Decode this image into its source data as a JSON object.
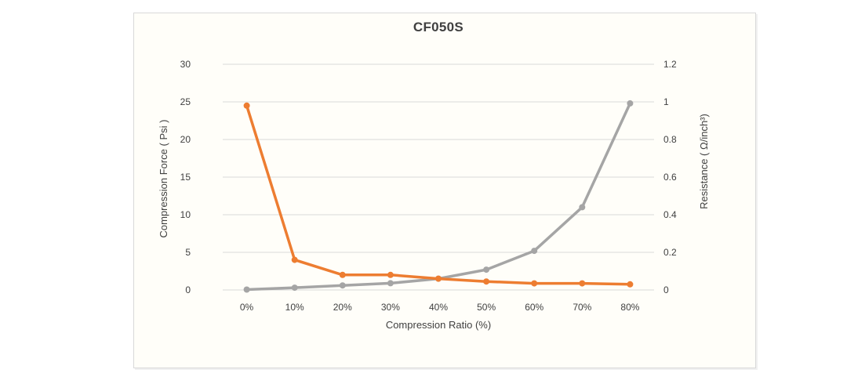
{
  "chart": {
    "title": "CF050S",
    "x_axis": {
      "title": "Compression Ratio   (%)",
      "categories": [
        "0%",
        "10%",
        "20%",
        "30%",
        "40%",
        "50%",
        "60%",
        "70%",
        "80%"
      ]
    },
    "left_axis": {
      "title": "Compression Force   ( Psi )",
      "ticks": [
        0,
        5,
        10,
        15,
        20,
        25,
        30
      ]
    },
    "right_axis": {
      "title": "Resistance ( Ω/inch³)",
      "ticks": [
        "0",
        "0.2",
        "0.4",
        "0.6",
        "0.8",
        "1",
        "1.2"
      ]
    },
    "colors": {
      "force_series": "#A5A5A5",
      "resistance_series": "#ED7D31",
      "gridline": "#D9D9D9",
      "frame_border": "#D9D9D9",
      "text": "#404040"
    }
  },
  "chart_data": {
    "type": "line",
    "title": "CF050S",
    "categories": [
      "0%",
      "10%",
      "20%",
      "30%",
      "40%",
      "50%",
      "60%",
      "70%",
      "80%"
    ],
    "series": [
      {
        "name": "Compression Force (Psi)",
        "axis": "left",
        "color": "#A5A5A5",
        "values": [
          0.05,
          0.3,
          0.6,
          0.9,
          1.5,
          2.7,
          5.2,
          11,
          24.8
        ]
      },
      {
        "name": "Resistance (Ω/inch³)",
        "axis": "right",
        "color": "#ED7D31",
        "values": [
          0.98,
          0.16,
          0.08,
          0.08,
          0.06,
          0.045,
          0.035,
          0.035,
          0.03
        ]
      }
    ],
    "xlabel": "Compression Ratio (%)",
    "ylabel_left": "Compression Force (Psi)",
    "ylabel_right": "Resistance (Ω/inch³)",
    "left_ylim": [
      0,
      30
    ],
    "right_ylim": [
      0,
      1.2
    ],
    "grid": true,
    "legend": false,
    "markers": true
  }
}
